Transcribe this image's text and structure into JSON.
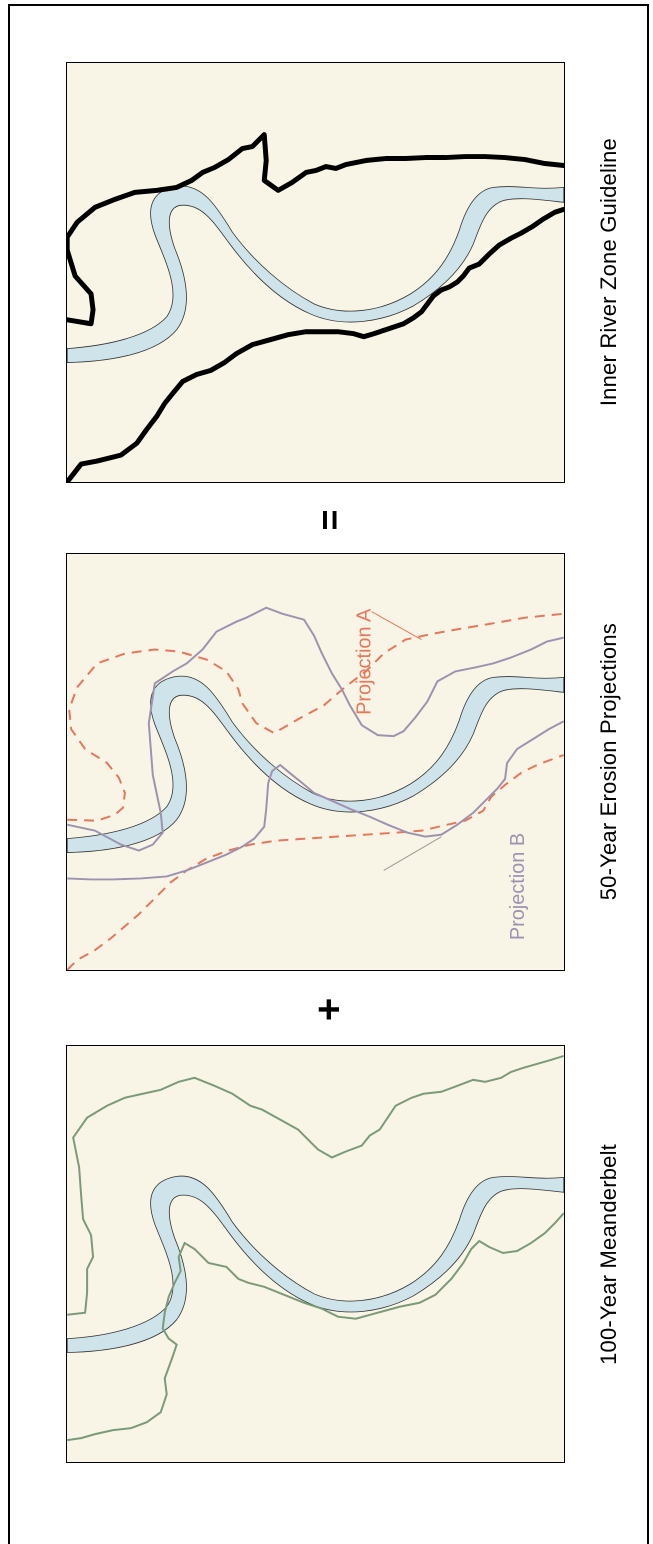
{
  "figure": {
    "panels": [
      {
        "id": "inner-river-zone",
        "title": "Inner River Zone Guideline"
      },
      {
        "id": "erosion-projections",
        "title": "50-Year Erosion Projections"
      },
      {
        "id": "meanderbelt",
        "title": "100-Year Meanderbelt"
      }
    ],
    "operators": {
      "equals": "=",
      "plus": "+"
    },
    "annotations": {
      "projection_a": "Projection A",
      "projection_b": "Projection B"
    },
    "colors": {
      "map_background": "#f9f5e6",
      "river_fill": "#cfe3ea",
      "zone_line": "#000000",
      "projection_a": "#e8765a",
      "projection_b": "#9d93b1",
      "meanderbelt": "#7a9a78"
    }
  }
}
